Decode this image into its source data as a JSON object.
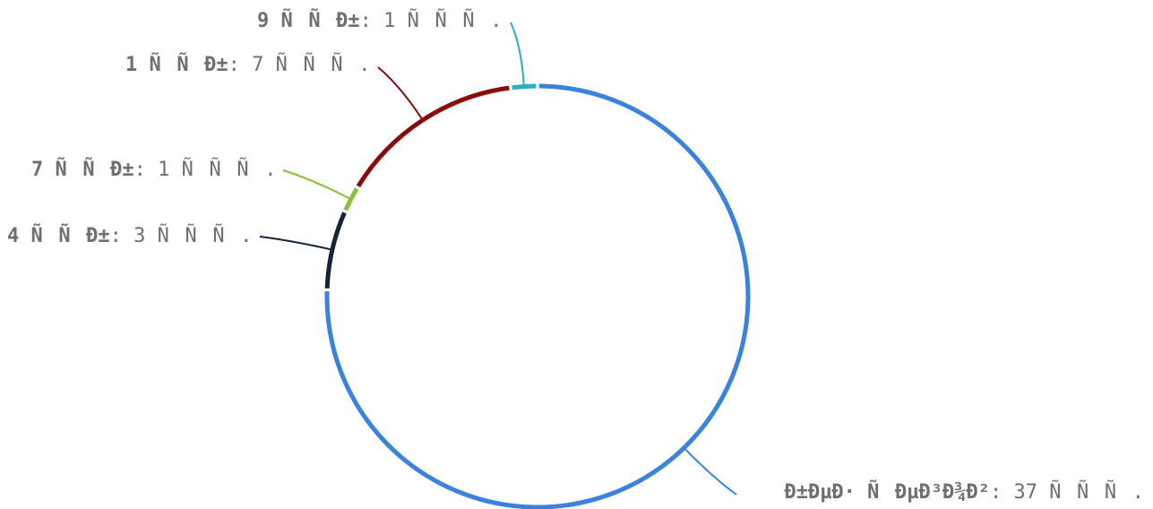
{
  "chart_data": {
    "type": "pie",
    "style": "ring",
    "slices": [
      {
        "bold": "Ð±ÐµÐ· ÑÐµÐ³Ð¾Ð²",
        "rest": ": 37 ÑÑÑ.",
        "value": 37,
        "color": "#3a82dc"
      },
      {
        "bold": "4 ÑÑÐ±",
        "rest": ": 3 ÑÑÑ.",
        "value": 3,
        "color": "#14243a"
      },
      {
        "bold": "7 ÑÑÐ±",
        "rest": ": 1 ÑÑÑ.",
        "value": 1,
        "color": "#8cc034"
      },
      {
        "bold": "1 ÑÑÐ±",
        "rest": ": 7 ÑÑÑ.",
        "value": 7,
        "color": "#8b0a0a"
      },
      {
        "bold": "9 ÑÑÐ±",
        "rest": ": 1 ÑÑÑ.",
        "value": 1,
        "color": "#28aecb"
      }
    ]
  }
}
